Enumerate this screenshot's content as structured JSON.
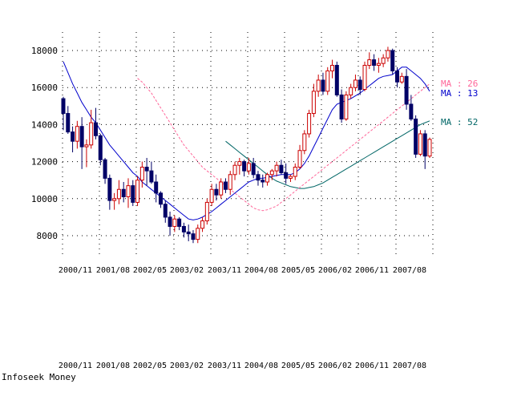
{
  "footer": "Infoseek Money",
  "colors": {
    "up": "#cc0000",
    "down": "#000066",
    "ma13": "#0000cc",
    "ma26": "#ff6699",
    "ma52": "#006666",
    "grid": "#000000"
  },
  "chart_data": {
    "type": "candlestick",
    "ylim": [
      7000,
      18500
    ],
    "yticks": [
      8000,
      10000,
      12000,
      14000,
      16000,
      18000
    ],
    "xticks": [
      "2000/11",
      "2001/08",
      "2002/05",
      "2003/02",
      "2003/11",
      "2004/08",
      "2005/05",
      "2006/02",
      "2006/11",
      "2007/08"
    ],
    "ma_labels": [
      {
        "key": "ma26",
        "text": "MA : 26",
        "value": 16200
      },
      {
        "key": "ma13",
        "text": "MA : 13",
        "value": 15850
      },
      {
        "key": "ma52",
        "text": "MA : 52",
        "value": 14100
      }
    ],
    "candles": [
      [
        15400,
        15500,
        13700,
        14600
      ],
      [
        14600,
        15000,
        13500,
        13600
      ],
      [
        13600,
        13900,
        12500,
        13100
      ],
      [
        13100,
        14200,
        12700,
        13900
      ],
      [
        13900,
        14400,
        11600,
        12800
      ],
      [
        12800,
        13200,
        11700,
        12900
      ],
      [
        12900,
        14800,
        12700,
        14100
      ],
      [
        14100,
        14900,
        13200,
        13400
      ],
      [
        13400,
        13500,
        11800,
        12100
      ],
      [
        12100,
        12200,
        10800,
        11100
      ],
      [
        11100,
        11300,
        9400,
        9900
      ],
      [
        9900,
        10300,
        9400,
        10000
      ],
      [
        10000,
        11000,
        9700,
        10500
      ],
      [
        10500,
        10900,
        9800,
        10100
      ],
      [
        10100,
        11100,
        9500,
        10700
      ],
      [
        10700,
        11000,
        9600,
        9800
      ],
      [
        9800,
        11200,
        9600,
        11000
      ],
      [
        11000,
        12000,
        10600,
        11700
      ],
      [
        11700,
        12200,
        10700,
        11500
      ],
      [
        11500,
        12000,
        10800,
        10900
      ],
      [
        10900,
        11300,
        9800,
        10300
      ],
      [
        10300,
        10400,
        9500,
        9700
      ],
      [
        9700,
        9900,
        8700,
        9000
      ],
      [
        9000,
        9300,
        8000,
        8500
      ],
      [
        8500,
        9100,
        8200,
        8900
      ],
      [
        8900,
        9000,
        8300,
        8500
      ],
      [
        8500,
        8700,
        7900,
        8200
      ],
      [
        8200,
        8600,
        7700,
        8100
      ],
      [
        8100,
        8300,
        7600,
        7800
      ],
      [
        7800,
        8600,
        7600,
        8400
      ],
      [
        8400,
        9000,
        8200,
        8800
      ],
      [
        8800,
        10000,
        8600,
        9800
      ],
      [
        9800,
        10800,
        9600,
        10500
      ],
      [
        10500,
        10800,
        9900,
        10200
      ],
      [
        10200,
        11100,
        10000,
        10900
      ],
      [
        10900,
        11100,
        10300,
        10500
      ],
      [
        10500,
        11500,
        10200,
        11300
      ],
      [
        11300,
        12000,
        11000,
        11800
      ],
      [
        11800,
        12200,
        11300,
        12000
      ],
      [
        12000,
        12100,
        11200,
        11500
      ],
      [
        11500,
        12200,
        11300,
        11900
      ],
      [
        11900,
        12200,
        11100,
        11300
      ],
      [
        11300,
        11500,
        10700,
        11000
      ],
      [
        11000,
        11300,
        10600,
        10900
      ],
      [
        10900,
        11400,
        10700,
        11300
      ],
      [
        11300,
        11600,
        11000,
        11500
      ],
      [
        11500,
        12000,
        11200,
        11800
      ],
      [
        11800,
        12100,
        11300,
        11400
      ],
      [
        11400,
        11900,
        10800,
        11100
      ],
      [
        11100,
        11300,
        10900,
        11200
      ],
      [
        11200,
        11900,
        11000,
        11700
      ],
      [
        11700,
        12900,
        11600,
        12600
      ],
      [
        12600,
        13700,
        12400,
        13500
      ],
      [
        13500,
        14800,
        13300,
        14600
      ],
      [
        14600,
        16200,
        14400,
        15800
      ],
      [
        15800,
        16700,
        15500,
        16400
      ],
      [
        16400,
        16800,
        15600,
        15800
      ],
      [
        15800,
        17100,
        15600,
        16900
      ],
      [
        16900,
        17500,
        16500,
        17200
      ],
      [
        17200,
        17400,
        15500,
        15600
      ],
      [
        15600,
        15900,
        14100,
        14300
      ],
      [
        14300,
        15800,
        14200,
        15600
      ],
      [
        15600,
        16200,
        15400,
        16000
      ],
      [
        16000,
        16700,
        15800,
        16400
      ],
      [
        16400,
        16600,
        15600,
        15900
      ],
      [
        15900,
        17400,
        15800,
        17200
      ],
      [
        17200,
        17900,
        17000,
        17500
      ],
      [
        17500,
        17800,
        16900,
        17200
      ],
      [
        17200,
        17600,
        16800,
        17300
      ],
      [
        17300,
        17800,
        17100,
        17600
      ],
      [
        17600,
        18200,
        17400,
        18000
      ],
      [
        18000,
        18100,
        16700,
        16900
      ],
      [
        16900,
        17100,
        16000,
        16300
      ],
      [
        16300,
        16800,
        16200,
        16600
      ],
      [
        16600,
        17000,
        14800,
        15100
      ],
      [
        15100,
        15600,
        14200,
        14300
      ],
      [
        14300,
        14500,
        12200,
        12400
      ],
      [
        12400,
        13700,
        12300,
        13500
      ],
      [
        13500,
        13700,
        11600,
        12300
      ],
      [
        12300,
        13300,
        12200,
        13200
      ]
    ],
    "ma13": [
      17400,
      16800,
      16200,
      15700,
      15200,
      14800,
      14400,
      14100,
      13700,
      13300,
      12900,
      12600,
      12300,
      12000,
      11700,
      11400,
      11200,
      10900,
      10700,
      10500,
      10300,
      10100,
      9900,
      9700,
      9500,
      9300,
      9100,
      8900,
      8850,
      8900,
      9000,
      9150,
      9300,
      9500,
      9700,
      9900,
      10100,
      10300,
      10500,
      10700,
      10900,
      11000,
      11100,
      11100,
      11150,
      11200,
      11250,
      11300,
      11300,
      11300,
      11400,
      11600,
      11900,
      12300,
      12800,
      13300,
      13800,
      14300,
      14800,
      15100,
      15200,
      15300,
      15400,
      15550,
      15700,
      15900,
      16100,
      16300,
      16500,
      16600,
      16650,
      16700,
      16900,
      17100,
      17100,
      16900,
      16700,
      16500,
      16200,
      15800
    ],
    "ma26": [
      null,
      16500,
      16300,
      16000,
      15700,
      15300,
      14900,
      14500,
      14100,
      13700,
      13300,
      12900,
      12600,
      12300,
      12000,
      11700,
      11500,
      11300,
      11100,
      10900,
      10700,
      10500,
      10300,
      10100,
      9900,
      9700,
      9500,
      9400,
      9350,
      9400,
      9500,
      9600,
      9800,
      10000,
      10200,
      10400,
      10600,
      10800,
      11000,
      11200,
      11400,
      11600,
      11800,
      12000,
      12200,
      12400,
      12600,
      12800,
      13000,
      13200,
      13400,
      13600,
      13800,
      14000,
      14200,
      14400,
      14600,
      14800,
      15000,
      15200,
      15400,
      15600,
      15800,
      16000,
      16200
    ],
    "ma52": [
      13100,
      12900,
      12700,
      12500,
      12300,
      12100,
      11900,
      11700,
      11500,
      11300,
      11100,
      10950,
      10850,
      10750,
      10650,
      10600,
      10550,
      10550,
      10600,
      10650,
      10750,
      10850,
      11000,
      11150,
      11300,
      11450,
      11600,
      11750,
      11900,
      12050,
      12200,
      12350,
      12500,
      12650,
      12800,
      12950,
      13100,
      13250,
      13400,
      13550,
      13700,
      13850,
      14000,
      14100,
      14200
    ]
  }
}
